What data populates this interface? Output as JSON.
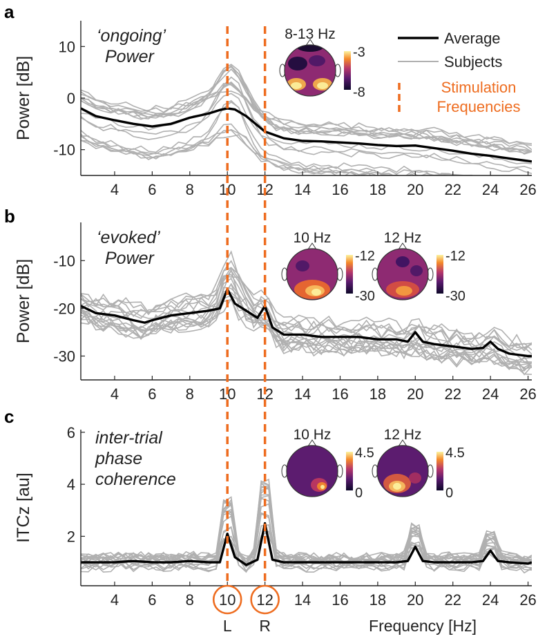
{
  "chart_data": [
    {
      "type": "line",
      "panel": "a",
      "title_lines": [
        "‘ongoing’",
        "Power"
      ],
      "ylabel": "Power [dB]",
      "xlim": [
        2.2,
        26.2
      ],
      "ylim": [
        -15,
        15
      ],
      "x_ticks": [
        4,
        6,
        8,
        10,
        12,
        14,
        16,
        18,
        20,
        22,
        24,
        26
      ],
      "y_ticks": [
        -10,
        0,
        10
      ],
      "series": [
        {
          "name": "Average",
          "x": [
            2.2,
            3,
            4,
            5,
            5.6,
            6,
            7,
            8,
            9,
            9.6,
            10,
            10.4,
            11,
            12,
            13,
            14,
            15,
            16,
            17,
            18,
            19,
            20,
            21,
            22,
            23,
            24,
            25,
            26,
            26.2
          ],
          "values": [
            -2,
            -3.5,
            -4.3,
            -5,
            -5.3,
            -5.5,
            -5,
            -3.8,
            -3,
            -2.3,
            -2,
            -2.2,
            -3.5,
            -6.5,
            -7.8,
            -8.3,
            -8.4,
            -8.6,
            -8.8,
            -9.1,
            -9.3,
            -9.2,
            -9.7,
            -10.2,
            -10.8,
            -11.2,
            -11.7,
            -12.2,
            -12.3
          ]
        }
      ],
      "topomap": {
        "label": "8-13 Hz",
        "cbar_max": "-3",
        "cbar_min": "-8"
      },
      "legend": {
        "average": "Average",
        "subjects": "Subjects",
        "stim": [
          "Stimulation",
          "Frequencies"
        ]
      }
    },
    {
      "type": "line",
      "panel": "b",
      "title_lines": [
        "‘evoked’",
        "Power"
      ],
      "ylabel": "Power [dB]",
      "xlim": [
        2.2,
        26.2
      ],
      "ylim": [
        -35,
        -2
      ],
      "x_ticks": [
        4,
        6,
        8,
        10,
        12,
        14,
        16,
        18,
        20,
        22,
        24,
        26
      ],
      "y_ticks": [
        -30,
        -20,
        -10
      ],
      "series": [
        {
          "name": "Average",
          "x": [
            2.2,
            3,
            4,
            5,
            5.6,
            6,
            7,
            8,
            9,
            9.6,
            10,
            10.4,
            11,
            11.6,
            12,
            12.4,
            13,
            14,
            15,
            16,
            17,
            18,
            19,
            19.6,
            20,
            20.4,
            21,
            22,
            23,
            23.6,
            24,
            24.4,
            25,
            26,
            26.2
          ],
          "values": [
            -19.5,
            -21,
            -21.5,
            -22.5,
            -23,
            -22.5,
            -21.5,
            -21,
            -20.5,
            -20,
            -16,
            -19,
            -20.5,
            -22,
            -19.5,
            -24,
            -25.5,
            -25.5,
            -26,
            -26,
            -26,
            -26.5,
            -26.5,
            -27,
            -25,
            -27,
            -27.5,
            -28,
            -28.5,
            -28.3,
            -27,
            -28.5,
            -29.5,
            -30,
            -30
          ]
        }
      ],
      "topomaps": [
        {
          "label": "10 Hz",
          "cbar_max": "-12",
          "cbar_min": "-30"
        },
        {
          "label": "12 Hz",
          "cbar_max": "-12",
          "cbar_min": "-30"
        }
      ]
    },
    {
      "type": "line",
      "panel": "c",
      "title_lines": [
        "inter-trial",
        "phase",
        "coherence"
      ],
      "ylabel": "ITCz [au]",
      "xlim": [
        2.2,
        26.2
      ],
      "ylim": [
        0.1,
        6.1
      ],
      "x_ticks": [
        4,
        6,
        8,
        10,
        12,
        14,
        16,
        18,
        20,
        22,
        24,
        26
      ],
      "y_ticks": [
        2,
        4,
        6
      ],
      "series": [
        {
          "name": "Average",
          "x": [
            2.2,
            3,
            4,
            5,
            6,
            7,
            8,
            9,
            9.6,
            10,
            10.4,
            11,
            11.6,
            12,
            12.4,
            13,
            14,
            15,
            16,
            17,
            18,
            19,
            19.6,
            20,
            20.4,
            21,
            22,
            23,
            23.6,
            24,
            24.4,
            25,
            26,
            26.2
          ],
          "values": [
            1,
            1,
            1,
            1.05,
            1,
            1,
            1.05,
            1,
            1,
            2.1,
            1.2,
            0.9,
            1.1,
            2.5,
            1.1,
            1,
            1,
            1,
            1,
            1,
            1,
            1,
            1.05,
            1.6,
            1.05,
            1,
            1,
            1,
            1.05,
            1.45,
            1.05,
            1,
            0.95,
            1
          ]
        }
      ],
      "topomaps": [
        {
          "label": "10 Hz",
          "cbar_max": "4.5",
          "cbar_min": "0"
        },
        {
          "label": "12 Hz",
          "cbar_max": "4.5",
          "cbar_min": "0"
        }
      ],
      "xlabel": "Frequency [Hz]"
    }
  ],
  "stimulation_frequencies": [
    10,
    12
  ],
  "circled_ticks": {
    "left": "10",
    "right": "12"
  },
  "side_labels": {
    "left": "L",
    "right": "R"
  },
  "panel_letters": [
    "a",
    "b",
    "c"
  ],
  "colors": {
    "average": "#000000",
    "subjects": "#b0b0b0",
    "stim": "#ee6c1f",
    "circle": "#ee6c1f"
  }
}
